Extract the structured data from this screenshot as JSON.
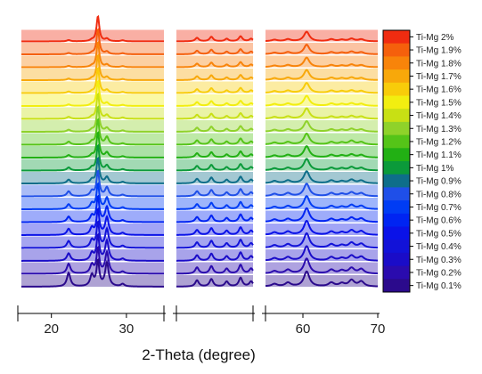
{
  "chart_data": {
    "type": "line",
    "title": "",
    "xlabel": "2-Theta (degree)",
    "ylabel": "",
    "style": "stacked-waterfall-with-broken-x-axis",
    "x_segments": [
      [
        16,
        35
      ],
      [
        37,
        53
      ],
      [
        55,
        70
      ]
    ],
    "x_ticks": [
      {
        "value": 20,
        "label": "20"
      },
      {
        "value": 30,
        "label": "30"
      },
      {
        "value": 60,
        "label": "60"
      },
      {
        "value": 70,
        "label": "70"
      }
    ],
    "peaks_2theta": [
      22.3,
      25.4,
      26.2,
      27.4,
      29.5,
      41.3,
      44.3,
      47.5,
      50.4,
      52.6,
      56.2,
      58.0,
      60.5,
      63.8,
      65.2,
      66.5,
      67.8
    ],
    "series": [
      {
        "name": "Ti-Mg 0.1%",
        "color": "#2b0a8c",
        "peak_intensity": [
          0.55,
          0.45,
          1.0,
          0.95,
          0.1,
          0.25,
          0.3,
          0.2,
          0.35,
          0.2,
          0.1,
          0.15,
          0.6,
          0.15,
          0.12,
          0.25,
          0.2
        ]
      },
      {
        "name": "Ti-Mg 0.2%",
        "color": "#2a0bae",
        "peak_intensity": [
          0.4,
          0.35,
          1.0,
          0.85,
          0.08,
          0.25,
          0.3,
          0.2,
          0.35,
          0.2,
          0.1,
          0.15,
          0.6,
          0.15,
          0.12,
          0.22,
          0.18
        ]
      },
      {
        "name": "Ti-Mg 0.3%",
        "color": "#1a0cc8",
        "peak_intensity": [
          0.3,
          0.3,
          1.0,
          0.8,
          0.08,
          0.22,
          0.28,
          0.18,
          0.33,
          0.18,
          0.1,
          0.14,
          0.58,
          0.14,
          0.1,
          0.2,
          0.16
        ]
      },
      {
        "name": "Ti-Mg 0.4%",
        "color": "#1212d8",
        "peak_intensity": [
          0.28,
          0.3,
          1.0,
          0.75,
          0.08,
          0.22,
          0.28,
          0.18,
          0.32,
          0.18,
          0.1,
          0.14,
          0.58,
          0.14,
          0.1,
          0.2,
          0.16
        ]
      },
      {
        "name": "Ti-Mg 0.5%",
        "color": "#0a12e8",
        "peak_intensity": [
          0.25,
          0.28,
          1.0,
          0.7,
          0.08,
          0.2,
          0.27,
          0.17,
          0.3,
          0.17,
          0.1,
          0.13,
          0.56,
          0.13,
          0.1,
          0.18,
          0.15
        ]
      },
      {
        "name": "Ti-Mg 0.6%",
        "color": "#0024f2",
        "peak_intensity": [
          0.22,
          0.25,
          1.0,
          0.6,
          0.07,
          0.2,
          0.26,
          0.16,
          0.3,
          0.16,
          0.1,
          0.12,
          0.55,
          0.12,
          0.09,
          0.17,
          0.14
        ]
      },
      {
        "name": "Ti-Mg 0.7%",
        "color": "#003cf4",
        "peak_intensity": [
          0.2,
          0.22,
          1.0,
          0.45,
          0.07,
          0.2,
          0.25,
          0.15,
          0.28,
          0.15,
          0.09,
          0.12,
          0.52,
          0.12,
          0.09,
          0.16,
          0.13
        ]
      },
      {
        "name": "Ti-Mg 0.8%",
        "color": "#1f4fe8",
        "peak_intensity": [
          0.2,
          0.2,
          1.0,
          0.35,
          0.06,
          0.2,
          0.25,
          0.15,
          0.28,
          0.15,
          0.09,
          0.12,
          0.5,
          0.12,
          0.09,
          0.15,
          0.12
        ]
      },
      {
        "name": "Ti-Mg 0.9%",
        "color": "#0e6e8a",
        "peak_intensity": [
          0.15,
          0.15,
          1.0,
          0.25,
          0.06,
          0.18,
          0.23,
          0.14,
          0.26,
          0.14,
          0.09,
          0.11,
          0.48,
          0.11,
          0.08,
          0.14,
          0.11
        ]
      },
      {
        "name": "Ti-Mg 1%",
        "color": "#0b9a3a",
        "peak_intensity": [
          0.12,
          0.12,
          1.0,
          0.2,
          0.05,
          0.18,
          0.22,
          0.13,
          0.25,
          0.13,
          0.08,
          0.1,
          0.46,
          0.1,
          0.08,
          0.13,
          0.1
        ]
      },
      {
        "name": "Ti-Mg 1.1%",
        "color": "#22b014",
        "peak_intensity": [
          0.1,
          0.1,
          1.0,
          0.2,
          0.05,
          0.17,
          0.21,
          0.12,
          0.24,
          0.12,
          0.08,
          0.1,
          0.45,
          0.1,
          0.08,
          0.12,
          0.1
        ]
      },
      {
        "name": "Ti-Mg 1.2%",
        "color": "#55c418",
        "peak_intensity": [
          0.12,
          0.12,
          1.0,
          0.3,
          0.05,
          0.17,
          0.21,
          0.12,
          0.24,
          0.12,
          0.08,
          0.1,
          0.44,
          0.1,
          0.08,
          0.15,
          0.1
        ]
      },
      {
        "name": "Ti-Mg 1.3%",
        "color": "#8fd22a",
        "peak_intensity": [
          0.08,
          0.08,
          1.0,
          0.15,
          0.05,
          0.16,
          0.2,
          0.11,
          0.22,
          0.11,
          0.07,
          0.09,
          0.42,
          0.09,
          0.07,
          0.11,
          0.09
        ]
      },
      {
        "name": "Ti-Mg 1.4%",
        "color": "#c8e014",
        "peak_intensity": [
          0.08,
          0.08,
          1.0,
          0.15,
          0.05,
          0.16,
          0.2,
          0.11,
          0.22,
          0.11,
          0.07,
          0.09,
          0.42,
          0.09,
          0.07,
          0.11,
          0.09
        ]
      },
      {
        "name": "Ti-Mg 1.5%",
        "color": "#f2ee10",
        "peak_intensity": [
          0.06,
          0.06,
          1.0,
          0.12,
          0.04,
          0.15,
          0.19,
          0.1,
          0.2,
          0.1,
          0.07,
          0.09,
          0.4,
          0.09,
          0.07,
          0.1,
          0.08
        ]
      },
      {
        "name": "Ti-Mg 1.6%",
        "color": "#f8cc0a",
        "peak_intensity": [
          0.06,
          0.06,
          1.0,
          0.12,
          0.04,
          0.15,
          0.19,
          0.1,
          0.2,
          0.1,
          0.07,
          0.09,
          0.4,
          0.09,
          0.07,
          0.1,
          0.08
        ]
      },
      {
        "name": "Ti-Mg 1.7%",
        "color": "#f8a80a",
        "peak_intensity": [
          0.06,
          0.06,
          1.0,
          0.12,
          0.04,
          0.15,
          0.19,
          0.1,
          0.2,
          0.1,
          0.07,
          0.09,
          0.4,
          0.09,
          0.07,
          0.1,
          0.08
        ]
      },
      {
        "name": "Ti-Mg 1.8%",
        "color": "#f8840a",
        "peak_intensity": [
          0.05,
          0.05,
          1.0,
          0.1,
          0.04,
          0.14,
          0.18,
          0.1,
          0.2,
          0.1,
          0.06,
          0.08,
          0.38,
          0.08,
          0.06,
          0.1,
          0.08
        ]
      },
      {
        "name": "Ti-Mg 1.9%",
        "color": "#f5600c",
        "peak_intensity": [
          0.05,
          0.05,
          1.0,
          0.1,
          0.04,
          0.14,
          0.18,
          0.1,
          0.2,
          0.1,
          0.06,
          0.08,
          0.38,
          0.08,
          0.06,
          0.1,
          0.08
        ]
      },
      {
        "name": "Ti-Mg 2%",
        "color": "#f02c10",
        "peak_intensity": [
          0.05,
          0.05,
          1.0,
          0.1,
          0.04,
          0.14,
          0.18,
          0.1,
          0.2,
          0.1,
          0.06,
          0.08,
          0.38,
          0.08,
          0.06,
          0.1,
          0.08
        ]
      }
    ],
    "legend_position": "right",
    "grid": false
  }
}
